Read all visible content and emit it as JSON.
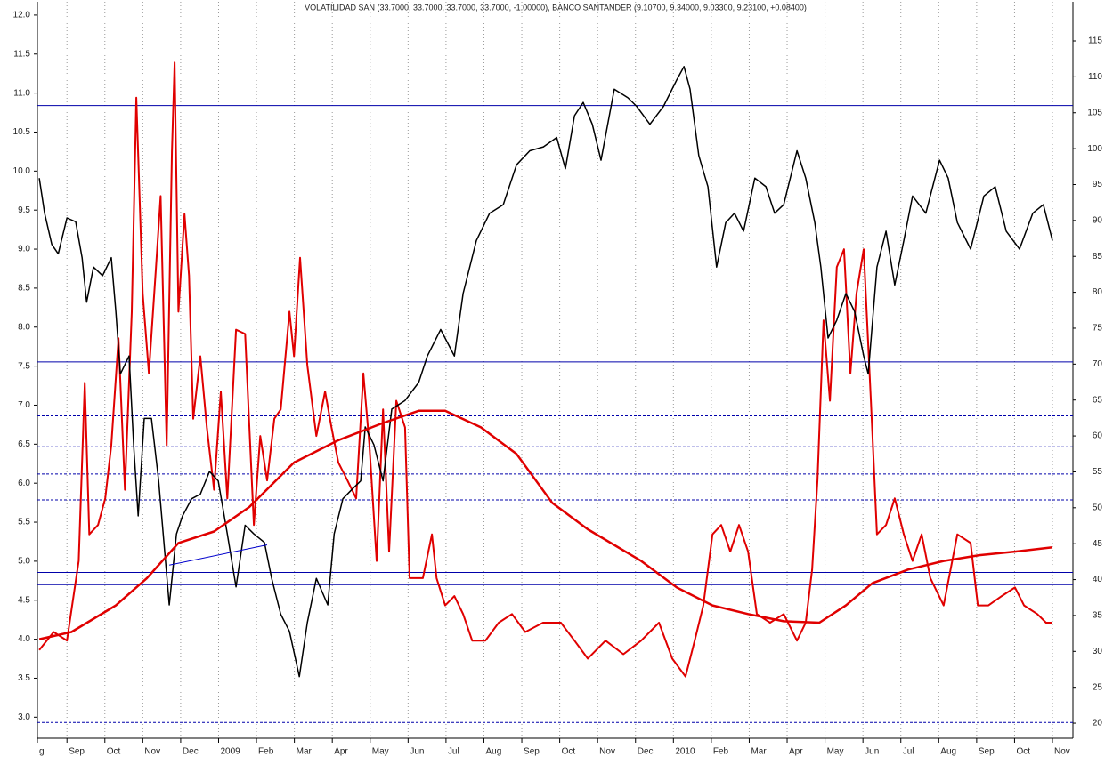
{
  "chart_data": {
    "type": "line",
    "title": "VOLATILIDAD SAN (33.7000, 33.7000, 33.7000, 33.7000, -1.00000), BANCO SANTANDER (9.10700, 9.34000, 9.03300, 9.23100, +0.08400)",
    "xlim": [
      -0.78,
      26.54
    ],
    "xticks": [
      {
        "value": -0.78,
        "label": "g"
      },
      {
        "value": 0,
        "label": "Sep"
      },
      {
        "value": 1,
        "label": "Oct"
      },
      {
        "value": 2,
        "label": "Nov"
      },
      {
        "value": 3,
        "label": "Dec"
      },
      {
        "value": 4,
        "label": "2009"
      },
      {
        "value": 5,
        "label": "Feb"
      },
      {
        "value": 6,
        "label": "Mar"
      },
      {
        "value": 7,
        "label": "Apr"
      },
      {
        "value": 8,
        "label": "May"
      },
      {
        "value": 9,
        "label": "Jun"
      },
      {
        "value": 10,
        "label": "Jul"
      },
      {
        "value": 11,
        "label": "Aug"
      },
      {
        "value": 12,
        "label": "Sep"
      },
      {
        "value": 13,
        "label": "Oct"
      },
      {
        "value": 14,
        "label": "Nov"
      },
      {
        "value": 15,
        "label": "Dec"
      },
      {
        "value": 16,
        "label": "2010"
      },
      {
        "value": 17,
        "label": "Feb"
      },
      {
        "value": 18,
        "label": "Mar"
      },
      {
        "value": 19,
        "label": "Apr"
      },
      {
        "value": 20,
        "label": "May"
      },
      {
        "value": 21,
        "label": "Jun"
      },
      {
        "value": 22,
        "label": "Jul"
      },
      {
        "value": 23,
        "label": "Aug"
      },
      {
        "value": 24,
        "label": "Sep"
      },
      {
        "value": 25,
        "label": "Oct"
      },
      {
        "value": 26,
        "label": "Nov"
      }
    ],
    "ylim": [
      2.73,
      12.17
    ],
    "yticks": [
      {
        "value": 3,
        "label": "3.0"
      },
      {
        "value": 3.5,
        "label": "3.5"
      },
      {
        "value": 4,
        "label": "4.0"
      },
      {
        "value": 4.5,
        "label": "4.5"
      },
      {
        "value": 5,
        "label": "5.0"
      },
      {
        "value": 5.5,
        "label": "5.5"
      },
      {
        "value": 6,
        "label": "6.0"
      },
      {
        "value": 6.5,
        "label": "6.5"
      },
      {
        "value": 7,
        "label": "7.0"
      },
      {
        "value": 7.5,
        "label": "7.5"
      },
      {
        "value": 8,
        "label": "8.0"
      },
      {
        "value": 8.5,
        "label": "8.5"
      },
      {
        "value": 9,
        "label": "9.0"
      },
      {
        "value": 9.5,
        "label": "9.5"
      },
      {
        "value": 10,
        "label": "10.0"
      },
      {
        "value": 10.5,
        "label": "10.5"
      },
      {
        "value": 11,
        "label": "11.0"
      },
      {
        "value": 11.5,
        "label": "11.5"
      },
      {
        "value": 12,
        "label": "12.0"
      }
    ],
    "y2lim": [
      17.9,
      120.45
    ],
    "y2ticks": [
      20,
      25,
      30,
      35,
      40,
      45,
      50,
      55,
      60,
      65,
      70,
      75,
      80,
      85,
      90,
      95,
      100,
      105,
      110,
      115
    ],
    "grid": true,
    "reference_lines": [
      {
        "value": 106,
        "axis": "y2",
        "color": "#0000aa",
        "style": "solid"
      },
      {
        "value": 70.3,
        "axis": "y2",
        "color": "#0000aa",
        "style": "solid"
      },
      {
        "value": 62.8,
        "axis": "y2",
        "color": "#0000aa",
        "style": "dashed"
      },
      {
        "value": 58.5,
        "axis": "y2",
        "color": "#0000aa",
        "style": "dashed"
      },
      {
        "value": 54.7,
        "axis": "y2",
        "color": "#0000aa",
        "style": "dashed"
      },
      {
        "value": 51.1,
        "axis": "y2",
        "color": "#0000aa",
        "style": "dashed"
      },
      {
        "value": 41.0,
        "axis": "y2",
        "color": "#0000aa",
        "style": "solid"
      },
      {
        "value": 39.3,
        "axis": "y2",
        "color": "#0000aa",
        "style": "solid"
      },
      {
        "value": 20.1,
        "axis": "y2",
        "color": "#0000aa",
        "style": "dashed"
      }
    ],
    "series": [
      {
        "name": "VOLATILIDAD SAN",
        "color": "#e00000",
        "axis": "y2",
        "width": 2,
        "x": [
          -0.73,
          -0.35,
          0,
          0.31,
          0.47,
          0.59,
          0.82,
          1.01,
          1.17,
          1.36,
          1.53,
          1.71,
          1.83,
          2.0,
          2.16,
          2.35,
          2.47,
          2.63,
          2.77,
          2.84,
          2.94,
          3.1,
          3.22,
          3.33,
          3.52,
          3.69,
          3.88,
          4.06,
          4.23,
          4.46,
          4.7,
          4.93,
          5.1,
          5.28,
          5.47,
          5.64,
          5.87,
          5.99,
          6.15,
          6.34,
          6.58,
          6.81,
          6.98,
          7.16,
          7.4,
          7.63,
          7.82,
          7.98,
          8.17,
          8.34,
          8.5,
          8.69,
          8.92,
          9.04,
          9.39,
          9.63,
          9.75,
          9.98,
          10.22,
          10.45,
          10.69,
          11.04,
          11.39,
          11.74,
          12.09,
          12.56,
          13.03,
          13.39,
          13.74,
          14.21,
          14.68,
          15.15,
          15.62,
          15.97,
          16.32,
          16.56,
          16.79,
          17.03,
          17.26,
          17.5,
          17.73,
          17.97,
          18.2,
          18.55,
          18.91,
          19.26,
          19.49,
          19.66,
          19.8,
          19.96,
          20.13,
          20.31,
          20.5,
          20.67,
          20.83,
          21.02,
          21.21,
          21.37,
          21.61,
          21.84,
          22.08,
          22.31,
          22.55,
          22.78,
          23.13,
          23.49,
          23.84,
          24.03,
          24.31,
          24.66,
          25.01,
          25.25,
          25.6,
          25.83,
          26.0
        ],
        "values": [
          30.2,
          32.7,
          31.5,
          42.6,
          67.4,
          46.3,
          47.6,
          51.3,
          58.7,
          73.6,
          52.5,
          77.3,
          107.1,
          79.8,
          68.7,
          83.5,
          93.4,
          58.7,
          99.6,
          112.0,
          77.3,
          90.9,
          82.3,
          62.4,
          71.1,
          61.2,
          52.5,
          66.2,
          51.3,
          74.8,
          74.2,
          47.6,
          60.0,
          53.8,
          62.4,
          63.7,
          77.3,
          71.1,
          84.8,
          69.9,
          60.0,
          66.2,
          61.2,
          56.3,
          53.8,
          51.3,
          68.7,
          58.7,
          42.6,
          63.7,
          43.9,
          64.9,
          61.2,
          40.2,
          40.2,
          46.3,
          40.2,
          36.4,
          37.7,
          35.2,
          31.5,
          31.5,
          34.0,
          35.2,
          32.7,
          34.0,
          34.0,
          31.5,
          29.0,
          31.5,
          29.6,
          31.5,
          34.0,
          29.0,
          26.5,
          31.5,
          36.4,
          46.3,
          47.6,
          43.9,
          47.6,
          43.9,
          35.2,
          34.0,
          35.2,
          31.5,
          34.0,
          41.4,
          53.8,
          76.1,
          64.9,
          83.5,
          86.0,
          68.7,
          79.8,
          86.0,
          64.9,
          46.3,
          47.6,
          51.3,
          46.3,
          42.6,
          46.3,
          40.2,
          36.4,
          46.3,
          45.1,
          36.4,
          36.4,
          37.7,
          38.9,
          36.4,
          35.2,
          34.0,
          34.0
        ]
      },
      {
        "name": "BANCO SANTANDER",
        "color": "#000000",
        "axis": "y",
        "width": 1.5,
        "x": [
          -0.73,
          -0.59,
          -0.4,
          -0.23,
          0,
          0.23,
          0.4,
          0.52,
          0.7,
          0.94,
          1.17,
          1.29,
          1.41,
          1.64,
          1.76,
          1.88,
          2.04,
          2.23,
          2.42,
          2.58,
          2.7,
          2.89,
          3.05,
          3.29,
          3.52,
          3.76,
          3.99,
          4.23,
          4.46,
          4.7,
          4.93,
          5.21,
          5.4,
          5.64,
          5.87,
          6.13,
          6.34,
          6.58,
          6.88,
          7.05,
          7.28,
          7.52,
          7.75,
          7.87,
          8.1,
          8.34,
          8.57,
          8.92,
          9.28,
          9.51,
          9.86,
          10.22,
          10.45,
          10.8,
          11.15,
          11.51,
          11.86,
          12.21,
          12.57,
          12.92,
          13.15,
          13.39,
          13.62,
          13.86,
          14.09,
          14.44,
          14.8,
          15.03,
          15.38,
          15.74,
          16.09,
          16.28,
          16.44,
          16.67,
          16.91,
          17.14,
          17.38,
          17.61,
          17.85,
          18.15,
          18.44,
          18.67,
          18.91,
          19.26,
          19.49,
          19.73,
          19.89,
          20.08,
          20.31,
          20.55,
          20.78,
          21.02,
          21.14,
          21.37,
          21.61,
          21.84,
          22.08,
          22.31,
          22.66,
          23.02,
          23.25,
          23.49,
          23.84,
          24.19,
          24.49,
          24.78,
          25.13,
          25.48,
          25.76,
          26.0
        ],
        "values": [
          9.91,
          9.46,
          9.06,
          8.94,
          9.4,
          9.35,
          8.89,
          8.32,
          8.77,
          8.66,
          8.89,
          8.2,
          7.4,
          7.63,
          6.49,
          5.58,
          6.83,
          6.83,
          6.03,
          5.12,
          4.44,
          5.35,
          5.58,
          5.8,
          5.86,
          6.15,
          6.03,
          5.35,
          4.67,
          5.46,
          5.35,
          5.24,
          4.78,
          4.32,
          4.1,
          3.52,
          4.21,
          4.78,
          4.44,
          5.35,
          5.8,
          5.92,
          6.03,
          6.72,
          6.49,
          6.03,
          6.95,
          7.06,
          7.29,
          7.63,
          7.97,
          7.63,
          8.43,
          9.11,
          9.46,
          9.57,
          10.08,
          10.26,
          10.31,
          10.43,
          10.03,
          10.71,
          10.88,
          10.6,
          10.14,
          11.05,
          10.94,
          10.83,
          10.6,
          10.83,
          11.17,
          11.34,
          11.05,
          10.2,
          9.8,
          8.77,
          9.34,
          9.46,
          9.23,
          9.91,
          9.8,
          9.46,
          9.57,
          10.26,
          9.91,
          9.34,
          8.77,
          7.86,
          8.09,
          8.43,
          8.2,
          7.63,
          7.4,
          8.77,
          9.23,
          8.54,
          9.11,
          9.68,
          9.46,
          10.14,
          9.91,
          9.34,
          9.0,
          9.68,
          9.8,
          9.23,
          9.0,
          9.46,
          9.57,
          9.11
        ]
      },
      {
        "color": "#e00000",
        "axis": "y2",
        "width": 2.5,
        "x": [
          -0.73,
          0.12,
          1.29,
          2.11,
          2.94,
          3.88,
          4.81,
          5.99,
          7.16,
          8.34,
          9.28,
          9.98,
          10.92,
          11.86,
          12.8,
          13.74,
          15.15,
          16.09,
          17.03,
          17.97,
          18.91,
          19.85,
          20.55,
          21.25,
          22.19,
          23.13,
          24.07,
          25.01,
          26.0
        ],
        "values": [
          31.7,
          32.7,
          36.4,
          40.2,
          45.1,
          46.7,
          50.1,
          56.3,
          59.4,
          61.8,
          63.5,
          63.5,
          61.2,
          57.5,
          50.7,
          47.0,
          42.6,
          38.9,
          36.4,
          35.2,
          34.2,
          34.0,
          36.4,
          39.5,
          41.4,
          42.6,
          43.4,
          43.9,
          44.5
        ]
      },
      {
        "color": "#0000cc",
        "axis": "y",
        "width": 1,
        "x": [
          2.7,
          5.28
        ],
        "values": [
          4.95,
          5.21
        ]
      }
    ]
  }
}
